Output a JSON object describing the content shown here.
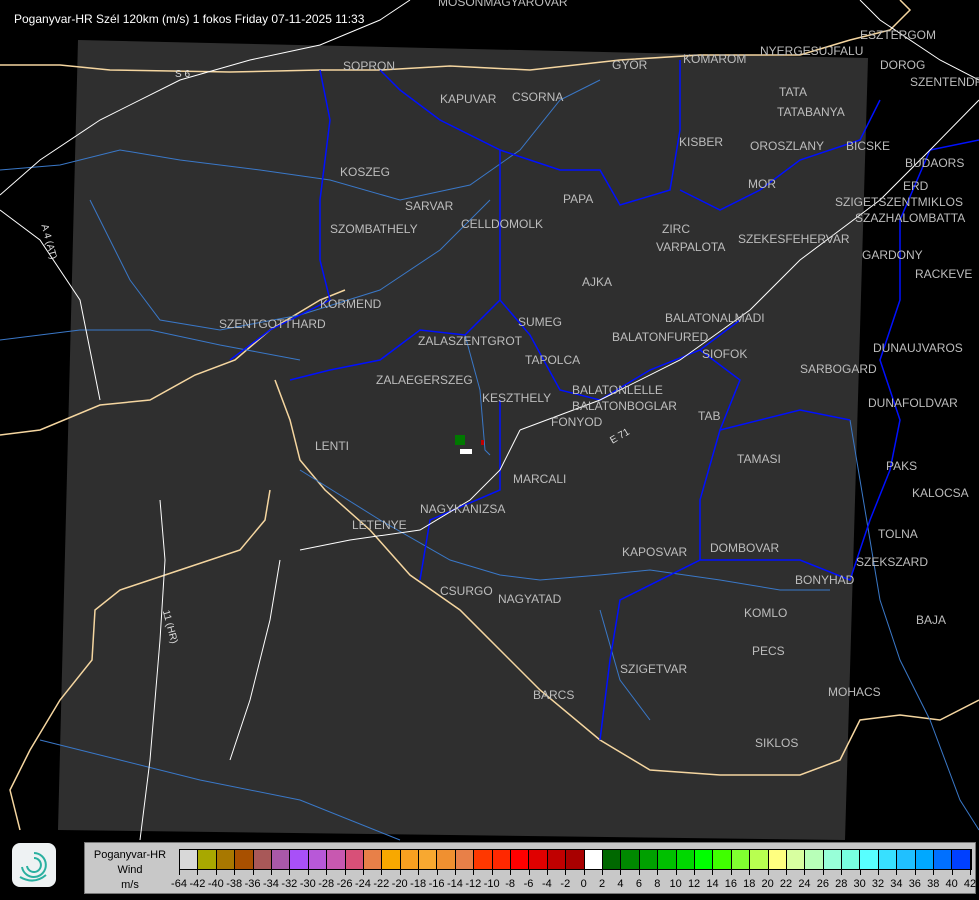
{
  "title": "Poganyvar-HR Szél 120km (m/s) 1 fokos Friday 07-11-2025 11:33",
  "road_labels": [
    "S 6",
    "A 4 (AT)",
    "11 (HR)",
    "E 71"
  ],
  "cities": [
    "MOSONMAGYAROVAR",
    "SOPRON",
    "KAPUVAR",
    "CSORNA",
    "GYOR",
    "KOMAROM",
    "ESZTERGOM",
    "NYERGESUJFALU",
    "DOROG",
    "SZENTENDRE",
    "TATA",
    "TATABANYA",
    "KISBER",
    "OROSZLANY",
    "BICSKE",
    "BUDAORS",
    "ERD",
    "SZIGETSZENTMIKLOS",
    "SZAZHALOMBATTA",
    "MOR",
    "ZIRC",
    "VARPALOTA",
    "SZEKESFEHERVAR",
    "GARDONY",
    "RACKEVE",
    "PAPA",
    "SARVAR",
    "CELLDOMOLK",
    "SZOMBATHELY",
    "KOSZEG",
    "KORMEND",
    "SZENTGOTTHARD",
    "SUMEG",
    "ZALASZENTGROT",
    "TAPOLCA",
    "AJKA",
    "BALATONALMADI",
    "BALATONFURED",
    "SIOFOK",
    "ZALAEGERSZEG",
    "KESZTHELY",
    "BALATONLELLE",
    "BALATONBOGLAR",
    "FONYOD",
    "LENTI",
    "MARCALI",
    "TAB",
    "TAMASI",
    "SARBOGARD",
    "DUNAUJVAROS",
    "DUNAFOLDVAR",
    "PAKS",
    "KALOCSA",
    "TOLNA",
    "SZEKSZARD",
    "BONYHAD",
    "DOMBOVAR",
    "KAPOSVAR",
    "NAGYKANIZSA",
    "LETENYE",
    "CSURGO",
    "NAGYATAD",
    "KOMLO",
    "BAJA",
    "PECS",
    "SZIGETVAR",
    "MOHACS",
    "BARCS",
    "SIKLOS"
  ],
  "legend": {
    "source": "Poganyvar-HR",
    "quantity": "Wind",
    "unit": "m/s",
    "labels": [
      "-64",
      "-42",
      "-40",
      "-38",
      "-36",
      "-34",
      "-32",
      "-30",
      "-28",
      "-26",
      "-24",
      "-22",
      "-20",
      "-18",
      "-16",
      "-14",
      "-12",
      "-10",
      "-8",
      "-6",
      "-4",
      "-2",
      "0",
      "2",
      "4",
      "6",
      "8",
      "10",
      "12",
      "14",
      "16",
      "18",
      "20",
      "22",
      "24",
      "26",
      "28",
      "30",
      "32",
      "34",
      "36",
      "38",
      "40",
      "42"
    ],
    "colors": [
      "#d8d8d8",
      "#a8a800",
      "#a87800",
      "#a85000",
      "#a85858",
      "#a858a8",
      "#a850f8",
      "#b858d8",
      "#c858b0",
      "#d85078",
      "#e88048",
      "#f8a800",
      "#f8a020",
      "#f8a830",
      "#f09030",
      "#e88048",
      "#ff3800",
      "#ff2800",
      "#ff0000",
      "#e00000",
      "#c00000",
      "#a80000",
      "#ffffff",
      "#006800",
      "#008800",
      "#00a000",
      "#00c000",
      "#00d800",
      "#00ff00",
      "#40ff00",
      "#80ff30",
      "#b8ff50",
      "#ffff80",
      "#d8ffa0",
      "#b8ffb8",
      "#98ffd8",
      "#78ffe0",
      "#58ffff",
      "#38e0ff",
      "#20c0ff",
      "#00a8ff",
      "#0070ff",
      "#0040ff",
      "#0000ff"
    ]
  },
  "colors": {
    "coverage": "#2f2f2f",
    "border": "#f5d6a0",
    "rivers": "#3a78c8",
    "regions": "#0010ff",
    "roads": "#ffffff"
  }
}
